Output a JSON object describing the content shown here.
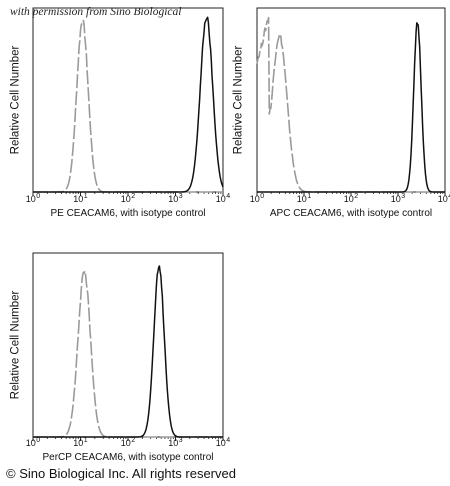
{
  "permission_note": "with permission from Sino Biological",
  "copyright": "© Sino Biological Inc. All rights reserved",
  "colors": {
    "isotype": "#9a9a9a",
    "antibody": "#111111",
    "frame": "#222222"
  },
  "chart_data": [
    {
      "type": "line",
      "xlabel": "PE CEACAM6, with isotype control",
      "ylabel": "Relative Cell Number",
      "xscale": "log",
      "xlim": [
        1,
        10000
      ],
      "xticks": [
        "10",
        "10",
        "10",
        "10",
        "10"
      ],
      "xtick_exponents": [
        "0",
        "1",
        "2",
        "3",
        "4"
      ],
      "series": [
        {
          "style": "dashed-gray",
          "peak_x": 11,
          "width_decades": 0.12,
          "peak_y": 0.93
        },
        {
          "style": "solid-black",
          "peak_x": 4500,
          "width_decades": 0.13,
          "peak_y": 0.95
        }
      ]
    },
    {
      "type": "line",
      "xlabel": "APC CEACAM6, with isotype control",
      "ylabel": "Relative Cell Number",
      "xscale": "log",
      "xlim": [
        1,
        10000
      ],
      "xticks": [
        "10",
        "10",
        "10",
        "10",
        "10"
      ],
      "xtick_exponents": [
        "0",
        "1",
        "2",
        "3",
        "4"
      ],
      "series": [
        {
          "style": "dashed-gray",
          "peak_x": 3,
          "width_decades": 0.16,
          "peak_y": 0.85,
          "shoulder": 0.5
        },
        {
          "style": "solid-black",
          "peak_x": 2600,
          "width_decades": 0.08,
          "peak_y": 0.92
        }
      ]
    },
    {
      "type": "line",
      "xlabel": "PerCP CEACAM6, with isotype control",
      "ylabel": "Relative Cell Number",
      "xscale": "log",
      "xlim": [
        1,
        10000
      ],
      "xticks": [
        "10",
        "10",
        "10",
        "10",
        "10"
      ],
      "xtick_exponents": [
        "0",
        "1",
        "2",
        "3",
        "4"
      ],
      "series": [
        {
          "style": "dashed-gray",
          "peak_x": 12,
          "width_decades": 0.13,
          "peak_y": 0.9
        },
        {
          "style": "solid-black",
          "peak_x": 450,
          "width_decades": 0.11,
          "peak_y": 0.92
        }
      ]
    }
  ]
}
